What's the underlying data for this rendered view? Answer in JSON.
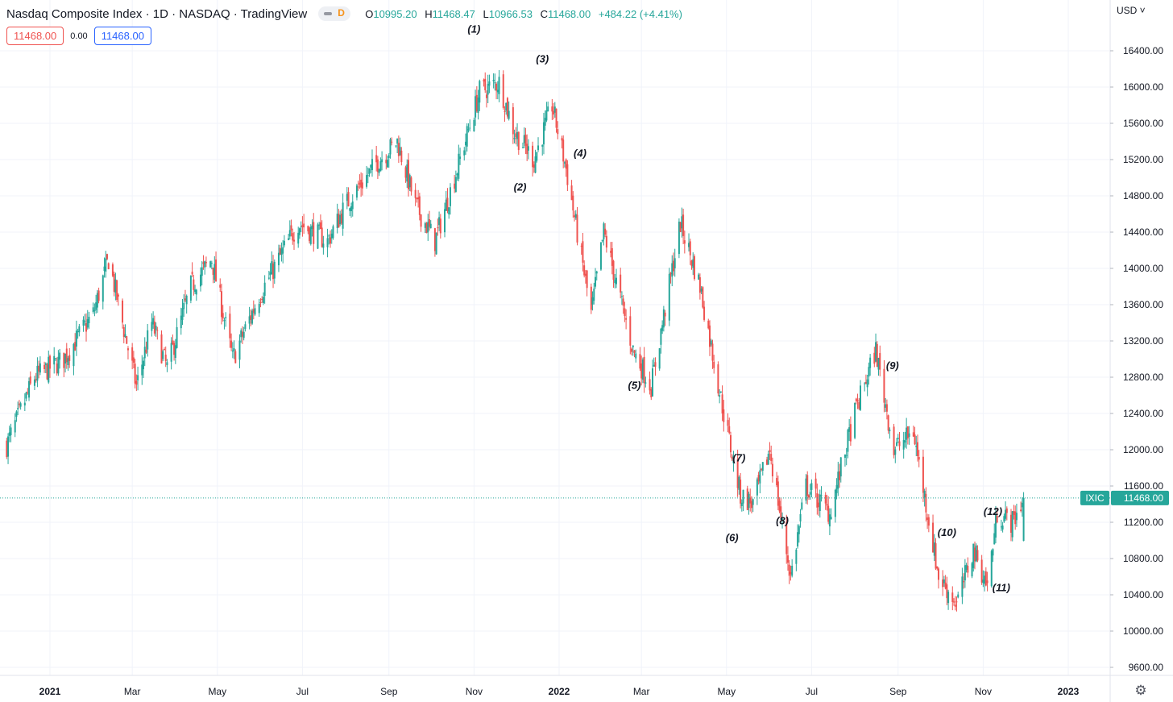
{
  "header": {
    "title": "Nasdaq Composite Index · 1D · NASDAQ · TradingView",
    "interval_badge": "D",
    "ohlc": [
      {
        "label": "O",
        "value": "10995.20"
      },
      {
        "label": "H",
        "value": "11468.47"
      },
      {
        "label": "L",
        "value": "10966.53"
      },
      {
        "label": "C",
        "value": "11468.00"
      }
    ],
    "change": "+484.22 (+4.41%)"
  },
  "inputs": {
    "first": "11468.00",
    "middle": "0.00",
    "second": "11468.00"
  },
  "currency": "USD",
  "colors": {
    "up": "#26a69a",
    "down": "#ef5350",
    "grid": "#f0f3fa",
    "text": "#131722",
    "accent_blue": "#2962ff"
  },
  "chart_data": {
    "type": "candlestick",
    "symbol": "IXIC",
    "last_price": "11468.00",
    "last_price_value": 11468,
    "y_ticks": [
      "16400.00",
      "16000.00",
      "15600.00",
      "15200.00",
      "14800.00",
      "14400.00",
      "14000.00",
      "13600.00",
      "13200.00",
      "12800.00",
      "12400.00",
      "12000.00",
      "11600.00",
      "11200.00",
      "10800.00",
      "10400.00",
      "10000.00",
      "9600.00"
    ],
    "x_ticks": [
      {
        "label": "2021",
        "date": "2021-01-01",
        "bold": true
      },
      {
        "label": "Mar",
        "date": "2021-03-01",
        "bold": false
      },
      {
        "label": "May",
        "date": "2021-05-01",
        "bold": false
      },
      {
        "label": "Jul",
        "date": "2021-07-01",
        "bold": false
      },
      {
        "label": "Sep",
        "date": "2021-09-01",
        "bold": false
      },
      {
        "label": "Nov",
        "date": "2021-11-01",
        "bold": false
      },
      {
        "label": "2022",
        "date": "2022-01-01",
        "bold": true
      },
      {
        "label": "Mar",
        "date": "2022-03-01",
        "bold": false
      },
      {
        "label": "May",
        "date": "2022-05-01",
        "bold": false
      },
      {
        "label": "Jul",
        "date": "2022-07-01",
        "bold": false
      },
      {
        "label": "Sep",
        "date": "2022-09-01",
        "bold": false
      },
      {
        "label": "Nov",
        "date": "2022-11-01",
        "bold": false
      },
      {
        "label": "2023",
        "date": "2023-01-01",
        "bold": true
      }
    ],
    "price_path": [
      [
        "2020-12-01",
        12050
      ],
      [
        "2020-12-21",
        12800
      ],
      [
        "2021-01-11",
        13000
      ],
      [
        "2021-02-01",
        13500
      ],
      [
        "2021-02-12",
        14100
      ],
      [
        "2021-03-04",
        12700
      ],
      [
        "2021-03-15",
        13400
      ],
      [
        "2021-03-26",
        12900
      ],
      [
        "2021-04-12",
        13800
      ],
      [
        "2021-04-27",
        14100
      ],
      [
        "2021-05-12",
        13000
      ],
      [
        "2021-05-31",
        13700
      ],
      [
        "2021-06-28",
        14500
      ],
      [
        "2021-07-19",
        14300
      ],
      [
        "2021-08-01",
        14700
      ],
      [
        "2021-08-25",
        15200
      ],
      [
        "2021-09-07",
        15400
      ],
      [
        "2021-09-20",
        14700
      ],
      [
        "2021-10-04",
        14300
      ],
      [
        "2021-10-20",
        15100
      ],
      [
        "2021-11-05",
        15950
      ],
      [
        "2021-11-19",
        16050
      ],
      [
        "2021-11-30",
        15500
      ],
      [
        "2021-12-14",
        15200
      ],
      [
        "2021-12-27",
        15800
      ],
      [
        "2022-01-06",
        15100
      ],
      [
        "2022-01-24",
        13500
      ],
      [
        "2022-02-02",
        14400
      ],
      [
        "2022-02-23",
        13100
      ],
      [
        "2022-03-08",
        12700
      ],
      [
        "2022-03-29",
        14500
      ],
      [
        "2022-04-12",
        13800
      ],
      [
        "2022-04-29",
        12400
      ],
      [
        "2022-05-11",
        11500
      ],
      [
        "2022-05-20",
        11400
      ],
      [
        "2022-06-01",
        12000
      ],
      [
        "2022-06-16",
        10600
      ],
      [
        "2022-06-27",
        11600
      ],
      [
        "2022-07-14",
        11300
      ],
      [
        "2022-08-01",
        12400
      ],
      [
        "2022-08-16",
        13100
      ],
      [
        "2022-08-29",
        12000
      ],
      [
        "2022-09-12",
        12200
      ],
      [
        "2022-09-30",
        10600
      ],
      [
        "2022-10-13",
        10300
      ],
      [
        "2022-10-25",
        10900
      ],
      [
        "2022-11-04",
        10500
      ],
      [
        "2022-11-11",
        11300
      ],
      [
        "2022-11-22",
        11200
      ],
      [
        "2022-11-30",
        11468
      ]
    ],
    "wave_labels": [
      {
        "text": "(1)",
        "date": "2021-11-01",
        "price": 16600
      },
      {
        "text": "(2)",
        "date": "2021-12-04",
        "price": 14860
      },
      {
        "text": "(3)",
        "date": "2021-12-20",
        "price": 16270
      },
      {
        "text": "(4)",
        "date": "2022-01-16",
        "price": 15230
      },
      {
        "text": "(5)",
        "date": "2022-02-24",
        "price": 12670
      },
      {
        "text": "(6)",
        "date": "2022-05-05",
        "price": 10990
      },
      {
        "text": "(7)",
        "date": "2022-05-10",
        "price": 11870
      },
      {
        "text": "(8)",
        "date": "2022-06-10",
        "price": 11180
      },
      {
        "text": "(9)",
        "date": "2022-08-28",
        "price": 12890
      },
      {
        "text": "(10)",
        "date": "2022-10-06",
        "price": 11050
      },
      {
        "text": "(11)",
        "date": "2022-11-14",
        "price": 10440
      },
      {
        "text": "(12)",
        "date": "2022-11-08",
        "price": 11280
      }
    ]
  }
}
